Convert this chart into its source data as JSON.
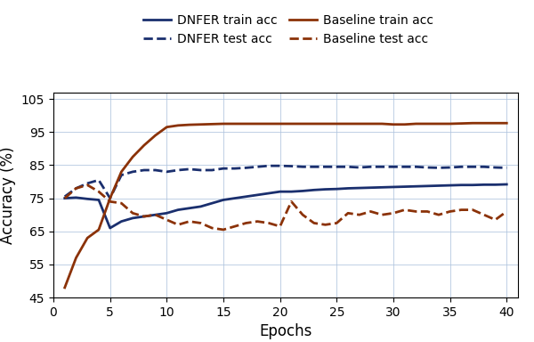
{
  "xlabel": "Epochs",
  "ylabel": "Accuracy (%)",
  "xlim": [
    0,
    41
  ],
  "ylim": [
    45,
    107
  ],
  "yticks": [
    45,
    55,
    65,
    75,
    85,
    95,
    105
  ],
  "xticks": [
    0,
    5,
    10,
    15,
    20,
    25,
    30,
    35,
    40
  ],
  "dnfer_color": "#1a2f6e",
  "baseline_color": "#8b3208",
  "legend_entries": [
    "DNFER train acc",
    "DNFER test acc",
    "Baseline train acc",
    "Baseline test acc"
  ],
  "dnfer_train": [
    75.0,
    75.2,
    74.8,
    74.5,
    66.0,
    68.0,
    69.0,
    69.5,
    70.0,
    70.5,
    71.5,
    72.0,
    72.5,
    73.5,
    74.5,
    75.0,
    75.5,
    76.0,
    76.5,
    77.0,
    77.0,
    77.2,
    77.5,
    77.7,
    77.8,
    78.0,
    78.1,
    78.2,
    78.3,
    78.4,
    78.5,
    78.6,
    78.7,
    78.8,
    78.9,
    79.0,
    79.0,
    79.1,
    79.1,
    79.2
  ],
  "dnfer_test": [
    75.5,
    78.0,
    79.5,
    80.5,
    75.0,
    82.0,
    83.0,
    83.5,
    83.5,
    83.0,
    83.5,
    83.8,
    83.5,
    83.5,
    84.0,
    84.0,
    84.2,
    84.5,
    84.8,
    84.8,
    84.7,
    84.5,
    84.5,
    84.5,
    84.5,
    84.5,
    84.3,
    84.5,
    84.5,
    84.5,
    84.5,
    84.5,
    84.3,
    84.2,
    84.3,
    84.5,
    84.5,
    84.5,
    84.3,
    84.2
  ],
  "baseline_train": [
    48.0,
    57.0,
    63.0,
    65.5,
    75.0,
    83.0,
    87.5,
    91.0,
    94.0,
    96.5,
    97.0,
    97.2,
    97.3,
    97.4,
    97.5,
    97.5,
    97.5,
    97.5,
    97.5,
    97.5,
    97.5,
    97.5,
    97.5,
    97.5,
    97.5,
    97.5,
    97.5,
    97.5,
    97.5,
    97.3,
    97.3,
    97.5,
    97.5,
    97.5,
    97.5,
    97.6,
    97.7,
    97.7,
    97.7,
    97.7
  ],
  "baseline_test": [
    75.0,
    78.0,
    79.0,
    77.0,
    74.0,
    73.5,
    70.5,
    69.5,
    70.0,
    68.5,
    67.0,
    68.0,
    67.5,
    66.0,
    65.5,
    66.5,
    67.5,
    68.0,
    67.5,
    66.5,
    74.0,
    70.0,
    67.5,
    67.0,
    67.5,
    70.5,
    70.0,
    71.0,
    70.0,
    70.5,
    71.5,
    71.0,
    71.0,
    70.0,
    71.0,
    71.5,
    71.5,
    70.0,
    68.5,
    71.0
  ]
}
